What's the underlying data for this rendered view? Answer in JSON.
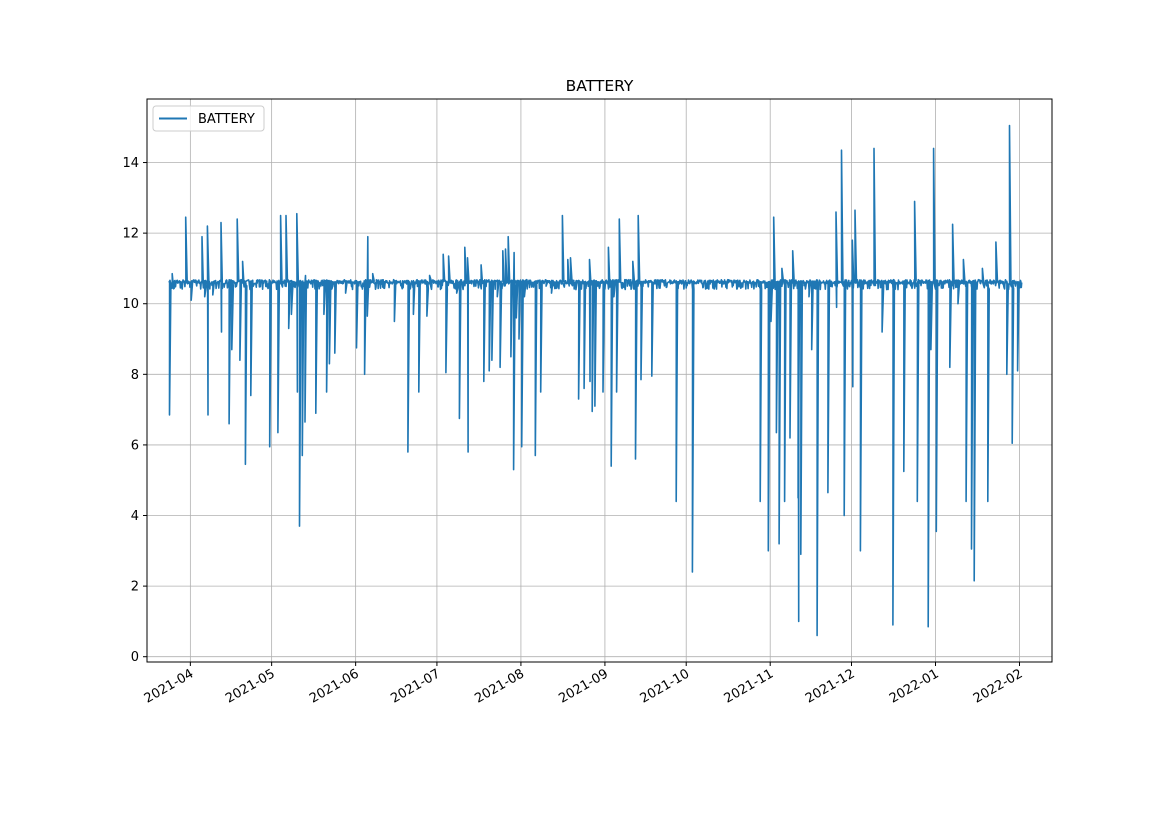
{
  "chart_data": {
    "type": "line",
    "title": "BATTERY",
    "xlabel": "",
    "ylabel": "",
    "x_ticks": [
      "2021-04",
      "2021-05",
      "2021-06",
      "2021-07",
      "2021-08",
      "2021-09",
      "2021-10",
      "2021-11",
      "2021-12",
      "2022-01",
      "2022-02"
    ],
    "y_ticks": [
      0,
      2,
      4,
      6,
      8,
      10,
      12,
      14
    ],
    "xlim": [
      "2021-03-16",
      "2022-02-13"
    ],
    "ylim": [
      -0.15,
      15.8
    ],
    "grid": true,
    "legend": {
      "position": "upper left",
      "entries": [
        "BATTERY"
      ]
    },
    "colors": {
      "series": "#1f77b4",
      "grid": "#b0b0b0",
      "frame": "#000000"
    },
    "baseline": 10.62,
    "series": [
      {
        "name": "BATTERY",
        "description_note": "",
        "spikes": [
          [
            "2021-03-24",
            6.85
          ],
          [
            "2021-03-25",
            10.85
          ],
          [
            "2021-03-28",
            10.5
          ],
          [
            "2021-03-30",
            12.45
          ],
          [
            "2021-04-01",
            10.1
          ],
          [
            "2021-04-05",
            11.9
          ],
          [
            "2021-04-06",
            10.2
          ],
          [
            "2021-04-07",
            12.2
          ],
          [
            "2021-04-07",
            6.85
          ],
          [
            "2021-04-09",
            10.25
          ],
          [
            "2021-04-12",
            12.3
          ],
          [
            "2021-04-12",
            9.2
          ],
          [
            "2021-04-15",
            6.6
          ],
          [
            "2021-04-16",
            8.7
          ],
          [
            "2021-04-18",
            12.4
          ],
          [
            "2021-04-19",
            8.4
          ],
          [
            "2021-04-20",
            11.2
          ],
          [
            "2021-04-21",
            5.45
          ],
          [
            "2021-04-23",
            7.4
          ],
          [
            "2021-04-30",
            5.95
          ],
          [
            "2021-05-03",
            6.35
          ],
          [
            "2021-05-04",
            12.5
          ],
          [
            "2021-05-06",
            12.5
          ],
          [
            "2021-05-07",
            9.3
          ],
          [
            "2021-05-08",
            9.7
          ],
          [
            "2021-05-10",
            12.55
          ],
          [
            "2021-05-10",
            7.5
          ],
          [
            "2021-05-11",
            3.7
          ],
          [
            "2021-05-12",
            5.7
          ],
          [
            "2021-05-13",
            6.65
          ],
          [
            "2021-05-13",
            10.8
          ],
          [
            "2021-05-17",
            6.9
          ],
          [
            "2021-05-20",
            9.7
          ],
          [
            "2021-05-21",
            7.5
          ],
          [
            "2021-05-22",
            8.3
          ],
          [
            "2021-05-24",
            8.6
          ],
          [
            "2021-05-28",
            10.3
          ],
          [
            "2021-06-01",
            8.75
          ],
          [
            "2021-06-04",
            8.0
          ],
          [
            "2021-06-05",
            9.65
          ],
          [
            "2021-06-05",
            11.9
          ],
          [
            "2021-06-07",
            10.85
          ],
          [
            "2021-06-15",
            9.5
          ],
          [
            "2021-06-20",
            5.8
          ],
          [
            "2021-06-22",
            9.7
          ],
          [
            "2021-06-24",
            7.5
          ],
          [
            "2021-06-27",
            9.65
          ],
          [
            "2021-06-28",
            10.8
          ],
          [
            "2021-07-03",
            11.4
          ],
          [
            "2021-07-04",
            8.05
          ],
          [
            "2021-07-05",
            11.35
          ],
          [
            "2021-07-08",
            10.3
          ],
          [
            "2021-07-09",
            6.75
          ],
          [
            "2021-07-11",
            11.6
          ],
          [
            "2021-07-12",
            11.3
          ],
          [
            "2021-07-12",
            5.8
          ],
          [
            "2021-07-16",
            10.45
          ],
          [
            "2021-07-17",
            11.1
          ],
          [
            "2021-07-18",
            7.8
          ],
          [
            "2021-07-20",
            8.1
          ],
          [
            "2021-07-21",
            8.4
          ],
          [
            "2021-07-23",
            10.2
          ],
          [
            "2021-07-24",
            8.2
          ],
          [
            "2021-07-25",
            11.5
          ],
          [
            "2021-07-26",
            11.55
          ],
          [
            "2021-07-27",
            11.9
          ],
          [
            "2021-07-28",
            8.5
          ],
          [
            "2021-07-29",
            5.3
          ],
          [
            "2021-07-29",
            11.45
          ],
          [
            "2021-07-30",
            9.6
          ],
          [
            "2021-07-31",
            9.0
          ],
          [
            "2021-08-01",
            5.95
          ],
          [
            "2021-08-02",
            10.2
          ],
          [
            "2021-08-06",
            5.7
          ],
          [
            "2021-08-08",
            7.5
          ],
          [
            "2021-08-10",
            10.5
          ],
          [
            "2021-08-12",
            10.3
          ],
          [
            "2021-08-16",
            12.5
          ],
          [
            "2021-08-18",
            11.25
          ],
          [
            "2021-08-19",
            11.3
          ],
          [
            "2021-08-21",
            10.4
          ],
          [
            "2021-08-22",
            7.3
          ],
          [
            "2021-08-24",
            7.6
          ],
          [
            "2021-08-26",
            11.25
          ],
          [
            "2021-08-26",
            7.8
          ],
          [
            "2021-08-27",
            6.95
          ],
          [
            "2021-08-28",
            7.1
          ],
          [
            "2021-08-29",
            10.5
          ],
          [
            "2021-08-31",
            7.5
          ],
          [
            "2021-09-02",
            11.6
          ],
          [
            "2021-09-03",
            5.4
          ],
          [
            "2021-09-04",
            10.2
          ],
          [
            "2021-09-05",
            7.5
          ],
          [
            "2021-09-06",
            12.4
          ],
          [
            "2021-09-09",
            10.5
          ],
          [
            "2021-09-11",
            11.2
          ],
          [
            "2021-09-12",
            5.6
          ],
          [
            "2021-09-13",
            12.5
          ],
          [
            "2021-09-14",
            7.85
          ],
          [
            "2021-09-18",
            7.95
          ],
          [
            "2021-09-27",
            4.4
          ],
          [
            "2021-10-03",
            2.4
          ],
          [
            "2021-10-28",
            4.4
          ],
          [
            "2021-10-31",
            3.0
          ],
          [
            "2021-11-01",
            9.5
          ],
          [
            "2021-11-02",
            12.45
          ],
          [
            "2021-11-03",
            6.35
          ],
          [
            "2021-11-04",
            3.2
          ],
          [
            "2021-11-05",
            11.0
          ],
          [
            "2021-11-06",
            4.4
          ],
          [
            "2021-11-08",
            6.2
          ],
          [
            "2021-11-09",
            11.5
          ],
          [
            "2021-11-11",
            4.5
          ],
          [
            "2021-11-11",
            1.0
          ],
          [
            "2021-11-12",
            2.9
          ],
          [
            "2021-11-15",
            10.2
          ],
          [
            "2021-11-16",
            8.7
          ],
          [
            "2021-11-18",
            0.6
          ],
          [
            "2021-11-22",
            4.65
          ],
          [
            "2021-11-25",
            12.6
          ],
          [
            "2021-11-25",
            9.9
          ],
          [
            "2021-11-27",
            14.35
          ],
          [
            "2021-11-28",
            4.0
          ],
          [
            "2021-12-01",
            11.8
          ],
          [
            "2021-12-01",
            7.65
          ],
          [
            "2021-12-02",
            12.65
          ],
          [
            "2021-12-04",
            3.0
          ],
          [
            "2021-12-09",
            14.4
          ],
          [
            "2021-12-12",
            9.2
          ],
          [
            "2021-12-16",
            0.9
          ],
          [
            "2021-12-20",
            5.25
          ],
          [
            "2021-12-24",
            12.9
          ],
          [
            "2021-12-25",
            4.4
          ],
          [
            "2021-12-29",
            0.85
          ],
          [
            "2021-12-30",
            8.7
          ],
          [
            "2021-12-31",
            14.4
          ],
          [
            "2022-01-01",
            3.55
          ],
          [
            "2022-01-06",
            8.2
          ],
          [
            "2022-01-07",
            12.25
          ],
          [
            "2022-01-09",
            10.0
          ],
          [
            "2022-01-11",
            11.25
          ],
          [
            "2022-01-12",
            4.4
          ],
          [
            "2022-01-14",
            3.05
          ],
          [
            "2022-01-15",
            2.15
          ],
          [
            "2022-01-18",
            11.0
          ],
          [
            "2022-01-20",
            4.4
          ],
          [
            "2022-01-23",
            11.75
          ],
          [
            "2022-01-27",
            8.0
          ],
          [
            "2022-01-28",
            15.05
          ],
          [
            "2022-01-29",
            6.05
          ],
          [
            "2022-01-31",
            8.1
          ]
        ],
        "range": [
          "2021-03-24",
          "2022-02-01"
        ]
      }
    ]
  }
}
